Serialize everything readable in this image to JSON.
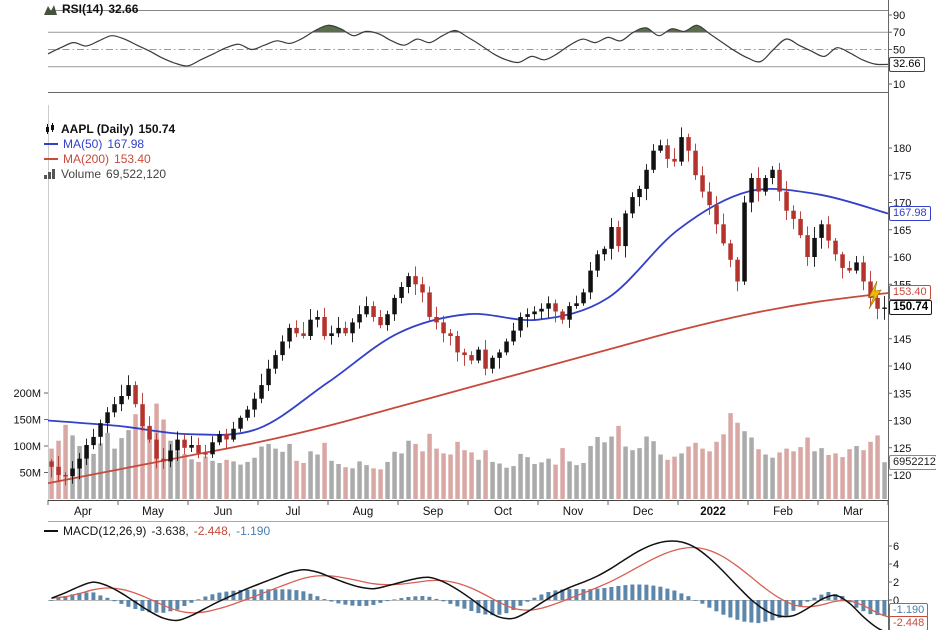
{
  "rsi_panel": {
    "legend_label": "RSI(14)",
    "legend_value": "32.66",
    "axis_ticks": [
      90,
      70,
      50,
      10
    ],
    "overbought": 70,
    "oversold": 30,
    "midline": 50,
    "current_label": "32.66"
  },
  "main_panel": {
    "legend": {
      "symbol_label": "AAPL (Daily)",
      "symbol_value": "150.74",
      "ma50_label": "MA(50)",
      "ma50_value": "167.98",
      "ma200_label": "MA(200)",
      "ma200_value": "153.40",
      "volume_label": "Volume",
      "volume_value": "69,522,120"
    },
    "price_ticks": [
      180,
      175,
      170,
      165,
      160,
      155,
      145,
      140,
      135,
      130,
      125,
      120
    ],
    "volume_ticks": [
      {
        "label": "200M",
        "v": 200
      },
      {
        "label": "150M",
        "v": 150
      },
      {
        "label": "100M",
        "v": 100
      },
      {
        "label": "50M",
        "v": 50
      }
    ],
    "ma50_price_label": "167.98",
    "ma200_price_label": "153.40",
    "current_price_label": "150.74",
    "volume_axis_label": "69522120"
  },
  "x_axis": {
    "labels": [
      "Apr",
      "May",
      "Jun",
      "Jul",
      "Aug",
      "Sep",
      "Oct",
      "Nov",
      "Dec",
      "2022",
      "Feb",
      "Mar"
    ],
    "bold_index": 9
  },
  "macd_panel": {
    "legend_label": "MACD(12,26,9)",
    "macd_value": "-3.638,",
    "signal_value": "-2.448,",
    "hist_value": "-1.190",
    "axis_ticks": [
      6,
      4,
      2,
      0
    ],
    "current_hist_label": "-1.190",
    "current_signal_label": "-2.448"
  },
  "colors": {
    "up_candle": "#111111",
    "down_candle": "#b5332d",
    "ma50": "#3341c8",
    "ma200": "#c84a3c",
    "volume_up": "#ababab",
    "volume_down": "#d9a7a4",
    "rsi_line": "#3c3c3c",
    "rsi_fill": "#5a6e4e",
    "macd_line": "#111111",
    "macd_signal": "#d95f52",
    "macd_hist": "#5c87ab",
    "axis_text": "#111111",
    "grid": "#999999",
    "marker": "#f2b705"
  },
  "chart_data": {
    "type": "candlestick",
    "symbol": "AAPL",
    "interval": "Daily",
    "last_close": 150.74,
    "last_volume": 69522120,
    "price_axis": {
      "min": 120,
      "max": 180
    },
    "rsi_axis": {
      "min": 0,
      "max": 100,
      "last": 32.66
    },
    "macd_axis": {
      "last_macd": -3.638,
      "last_signal": -2.448,
      "last_hist": -1.19
    },
    "closes": [
      121.5,
      120.0,
      119.8,
      121.2,
      123.0,
      125.5,
      127.0,
      129.5,
      131.5,
      133.0,
      134.5,
      136.5,
      133.0,
      129.0,
      126.5,
      123.0,
      122.5,
      124.5,
      126.5,
      125.0,
      125.5,
      124.0,
      123.8,
      126.0,
      127.5,
      126.5,
      128.5,
      130.5,
      132.0,
      134.0,
      136.5,
      139.5,
      142.0,
      144.5,
      147.0,
      146.0,
      145.5,
      148.5,
      149.0,
      145.5,
      146.0,
      147.0,
      146.0,
      148.0,
      149.5,
      151.0,
      149.0,
      147.5,
      149.5,
      152.5,
      154.5,
      156.5,
      155.0,
      153.5,
      149.0,
      148.0,
      146.0,
      145.5,
      142.5,
      142.0,
      141.0,
      143.0,
      139.5,
      141.5,
      142.5,
      144.5,
      146.5,
      149.0,
      149.5,
      150.0,
      150.5,
      151.5,
      150.0,
      148.5,
      151.0,
      151.5,
      153.5,
      157.5,
      160.5,
      161.5,
      165.5,
      162.0,
      168.0,
      171.0,
      172.5,
      176.0,
      179.5,
      180.5,
      178.0,
      177.5,
      182.0,
      179.5,
      175.0,
      172.0,
      169.5,
      166.0,
      162.5,
      159.5,
      155.5,
      170.0,
      174.5,
      172.0,
      174.5,
      176.0,
      172.0,
      168.5,
      167.0,
      164.0,
      160.0,
      163.5,
      166.0,
      163.0,
      160.5,
      158.0,
      157.5,
      159.0,
      155.5,
      152.5,
      150.5,
      150.74
    ],
    "volumes_m": [
      95,
      110,
      140,
      120,
      100,
      90,
      85,
      105,
      125,
      95,
      115,
      130,
      160,
      140,
      125,
      180,
      150,
      110,
      90,
      85,
      75,
      70,
      80,
      72,
      68,
      74,
      71,
      65,
      70,
      78,
      99,
      104,
      95,
      89,
      104,
      72,
      68,
      90,
      84,
      106,
      72,
      66,
      60,
      58,
      71,
      64,
      58,
      56,
      70,
      89,
      86,
      110,
      104,
      90,
      123,
      95,
      86,
      84,
      108,
      92,
      88,
      74,
      92,
      70,
      67,
      59,
      62,
      85,
      79,
      66,
      69,
      76,
      65,
      96,
      71,
      64,
      68,
      100,
      117,
      107,
      118,
      138,
      99,
      92,
      96,
      118,
      109,
      84,
      74,
      80,
      86,
      99,
      106,
      95,
      90,
      108,
      122,
      162,
      144,
      128,
      116,
      94,
      84,
      78,
      88,
      95,
      90,
      98,
      116,
      90,
      96,
      83,
      86,
      79,
      94,
      100,
      92,
      108,
      120,
      69.5
    ],
    "rsi": [
      45,
      52,
      58,
      54,
      60,
      66,
      62,
      55,
      48,
      40,
      34,
      31,
      38,
      45,
      52,
      56,
      50,
      55,
      60,
      57,
      63,
      72,
      78,
      74,
      66,
      71,
      68,
      60,
      55,
      62,
      58,
      66,
      72,
      64,
      55,
      45,
      38,
      35,
      42,
      38,
      45,
      55,
      62,
      58,
      64,
      60,
      70,
      75,
      66,
      74,
      71,
      78,
      68,
      58,
      48,
      40,
      36,
      50,
      62,
      55,
      48,
      42,
      52,
      46,
      38,
      33,
      32.66
    ],
    "macd": [
      0.2,
      0.8,
      1.5,
      2.0,
      1.6,
      0.8,
      -0.2,
      -1.2,
      -2.0,
      -2.3,
      -1.8,
      -1.0,
      -0.2,
      0.5,
      1.2,
      1.8,
      2.4,
      3.0,
      3.4,
      3.2,
      2.6,
      2.0,
      1.5,
      1.2,
      1.5,
      1.9,
      2.3,
      2.6,
      2.2,
      1.4,
      0.4,
      -0.8,
      -1.8,
      -2.2,
      -1.6,
      -0.6,
      0.4,
      1.2,
      1.8,
      2.4,
      3.2,
      4.2,
      5.2,
      6.0,
      6.5,
      6.6,
      6.2,
      5.2,
      3.8,
      2.2,
      0.6,
      -0.8,
      -1.6,
      -2.0,
      -1.4,
      -0.4,
      0.6,
      0.4,
      -1.2,
      -2.6,
      -3.638
    ],
    "ma50_anchors": [
      130,
      129,
      127.5,
      128.5,
      137,
      146,
      149.5,
      148.5,
      152.5,
      165,
      172,
      171.5,
      167.98
    ],
    "ma200_anchors": [
      118.5,
      121,
      123.5,
      126,
      129,
      132.5,
      136,
      139.5,
      143,
      146.5,
      149.5,
      151.8,
      153.4
    ]
  }
}
